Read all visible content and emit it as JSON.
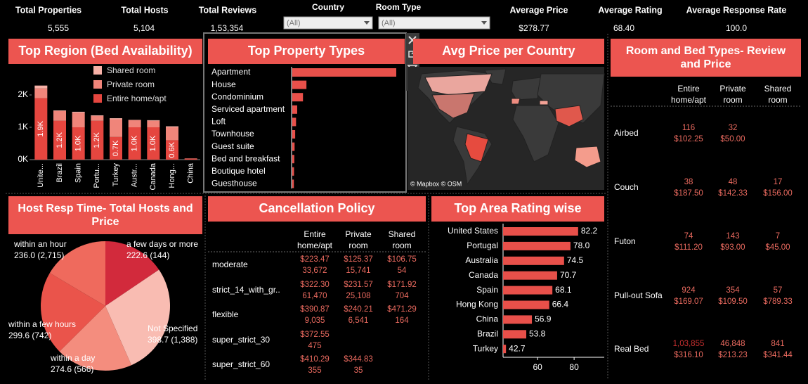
{
  "kpis": [
    {
      "label": "Total Properties",
      "value": "5,555"
    },
    {
      "label": "Total Hosts",
      "value": "5,104"
    },
    {
      "label": "Total Reviews",
      "value": "1,53,354"
    },
    {
      "label": "Average Price",
      "value": "$278.77"
    },
    {
      "label": "Average Rating",
      "value": "68.40"
    },
    {
      "label": "Average Response Rate",
      "value": "100.0"
    }
  ],
  "filters": [
    {
      "label": "Country",
      "value": "(All)"
    },
    {
      "label": "Room Type",
      "value": "(All)"
    }
  ],
  "chart_data": [
    {
      "type": "stacked_bar",
      "title": "Top Region (Bed Availability)",
      "categories": [
        "Unite...",
        "Brazil",
        "Spain",
        "Portu...",
        "Turkey",
        "Austr...",
        "Canada",
        "Hong...",
        "China"
      ],
      "series": [
        {
          "name": "Shared room",
          "color": "#f7b1a7",
          "values": [
            90,
            20,
            30,
            20,
            30,
            10,
            20,
            30,
            0
          ]
        },
        {
          "name": "Private room",
          "color": "#f0857a",
          "values": [
            300,
            300,
            450,
            150,
            550,
            220,
            200,
            400,
            10
          ]
        },
        {
          "name": "Entire home/apt",
          "color": "#e5463f",
          "values": [
            1900,
            1200,
            1000,
            1200,
            700,
            1000,
            1000,
            600,
            30
          ],
          "value_labels": [
            "1.9K",
            "1.2K",
            "1.0K",
            "1.2K",
            "0.7K",
            "1.0K",
            "1.0K",
            "0.6K",
            null
          ]
        }
      ],
      "ylim": [
        0,
        2500
      ],
      "yticks": [
        {
          "value": 0,
          "label": "0K"
        },
        {
          "value": 1000,
          "label": "1K"
        },
        {
          "value": 2000,
          "label": "2K"
        }
      ]
    },
    {
      "type": "hbar",
      "title": "Top Property Types",
      "color": "#e8504a",
      "categories": [
        "Apartment",
        "House",
        "Condominium",
        "Serviced apartment",
        "Loft",
        "Townhouse",
        "Guest suite",
        "Bed and breakfast",
        "Boutique hotel",
        "Guesthouse"
      ],
      "values": [
        3600,
        490,
        370,
        170,
        130,
        100,
        80,
        70,
        60,
        55
      ]
    },
    {
      "type": "pie",
      "title": "Host Resp Time- Total Hosts and Price",
      "categories": [
        "a few days or more",
        "Not Specified",
        "within a day",
        "within a few hours",
        "within an hour"
      ],
      "values": [
        222.6,
        398.7,
        274.6,
        299.6,
        236.0
      ],
      "hosts": [
        144,
        1388,
        566,
        742,
        2715
      ],
      "value_labels": [
        "222.6 (144)",
        "398.7 (1,388)",
        "274.6 (566)",
        "299.6 (742)",
        "236.0 (2,715)"
      ],
      "colors": [
        "#d22a3c",
        "#f9bcb2",
        "#f48d7e",
        "#ea544b",
        "#ef6a5d"
      ]
    },
    {
      "type": "hbar_axis",
      "title": "Top Area Rating wise",
      "color": "#e8504a",
      "categories": [
        "United States",
        "Portugal",
        "Australia",
        "Canada",
        "Spain",
        "Hong Kong",
        "China",
        "Brazil",
        "Turkey"
      ],
      "values": [
        82.2,
        78.0,
        74.5,
        70.7,
        68.1,
        66.4,
        56.9,
        53.8,
        42.7
      ],
      "value_labels": [
        "82.2",
        "78.0",
        "74.5",
        "70.7",
        "68.1",
        "66.4",
        "56.9",
        "53.8",
        "42.7"
      ],
      "xlim": [
        41.1,
        96.5
      ],
      "xticks": [
        60,
        80
      ]
    }
  ],
  "map": {
    "title": "Avg Price per Country",
    "attribution": "© Mapbox © OSM"
  },
  "tables": [
    {
      "title": "Cancellation Policy",
      "columns": [
        "Entire home/apt",
        "Private room",
        "Shared room"
      ],
      "rows": [
        {
          "label": "moderate",
          "cells": [
            [
              "$223.47",
              "33,672"
            ],
            [
              "$125.37",
              "15,741"
            ],
            [
              "$106.75",
              "54"
            ]
          ]
        },
        {
          "label": "strict_14_with_gr..",
          "cells": [
            [
              "$322.30",
              "61,470"
            ],
            [
              "$231.57",
              "25,108"
            ],
            [
              "$171.92",
              "704"
            ]
          ]
        },
        {
          "label": "flexible",
          "cells": [
            [
              "$390.87",
              "9,035"
            ],
            [
              "$240.21",
              "6,541"
            ],
            [
              "$471.29",
              "164"
            ]
          ]
        },
        {
          "label": "super_strict_30",
          "cells": [
            [
              "$372.55",
              "475"
            ],
            null,
            null
          ]
        },
        {
          "label": "super_strict_60",
          "cells": [
            [
              "$410.29",
              "355"
            ],
            [
              "$344.83",
              "35"
            ],
            null
          ]
        }
      ]
    },
    {
      "title": "Room and Bed Types- Review and Price",
      "columns": [
        "Entire home/apt",
        "Private room",
        "Shared room"
      ],
      "rows": [
        {
          "label": "Airbed",
          "cells": [
            [
              "116",
              "$102.25"
            ],
            [
              "32",
              "$50.00"
            ],
            null
          ]
        },
        {
          "label": "Couch",
          "cells": [
            [
              "38",
              "$187.50"
            ],
            [
              "48",
              "$142.33"
            ],
            [
              "17",
              "$156.00"
            ]
          ]
        },
        {
          "label": "Futon",
          "cells": [
            [
              "74",
              "$111.20"
            ],
            [
              "143",
              "$93.00"
            ],
            [
              "7",
              "$45.00"
            ]
          ]
        },
        {
          "label": "Pull-out Sofa",
          "cells": [
            [
              "924",
              "$169.07"
            ],
            [
              "354",
              "$109.50"
            ],
            [
              "57",
              "$789.33"
            ]
          ]
        },
        {
          "label": "Real Bed",
          "cells": [
            [
              "1,03,855",
              "$316.10"
            ],
            [
              "46,848",
              "$213.23"
            ],
            [
              "841",
              "$341.44"
            ]
          ]
        }
      ]
    }
  ]
}
